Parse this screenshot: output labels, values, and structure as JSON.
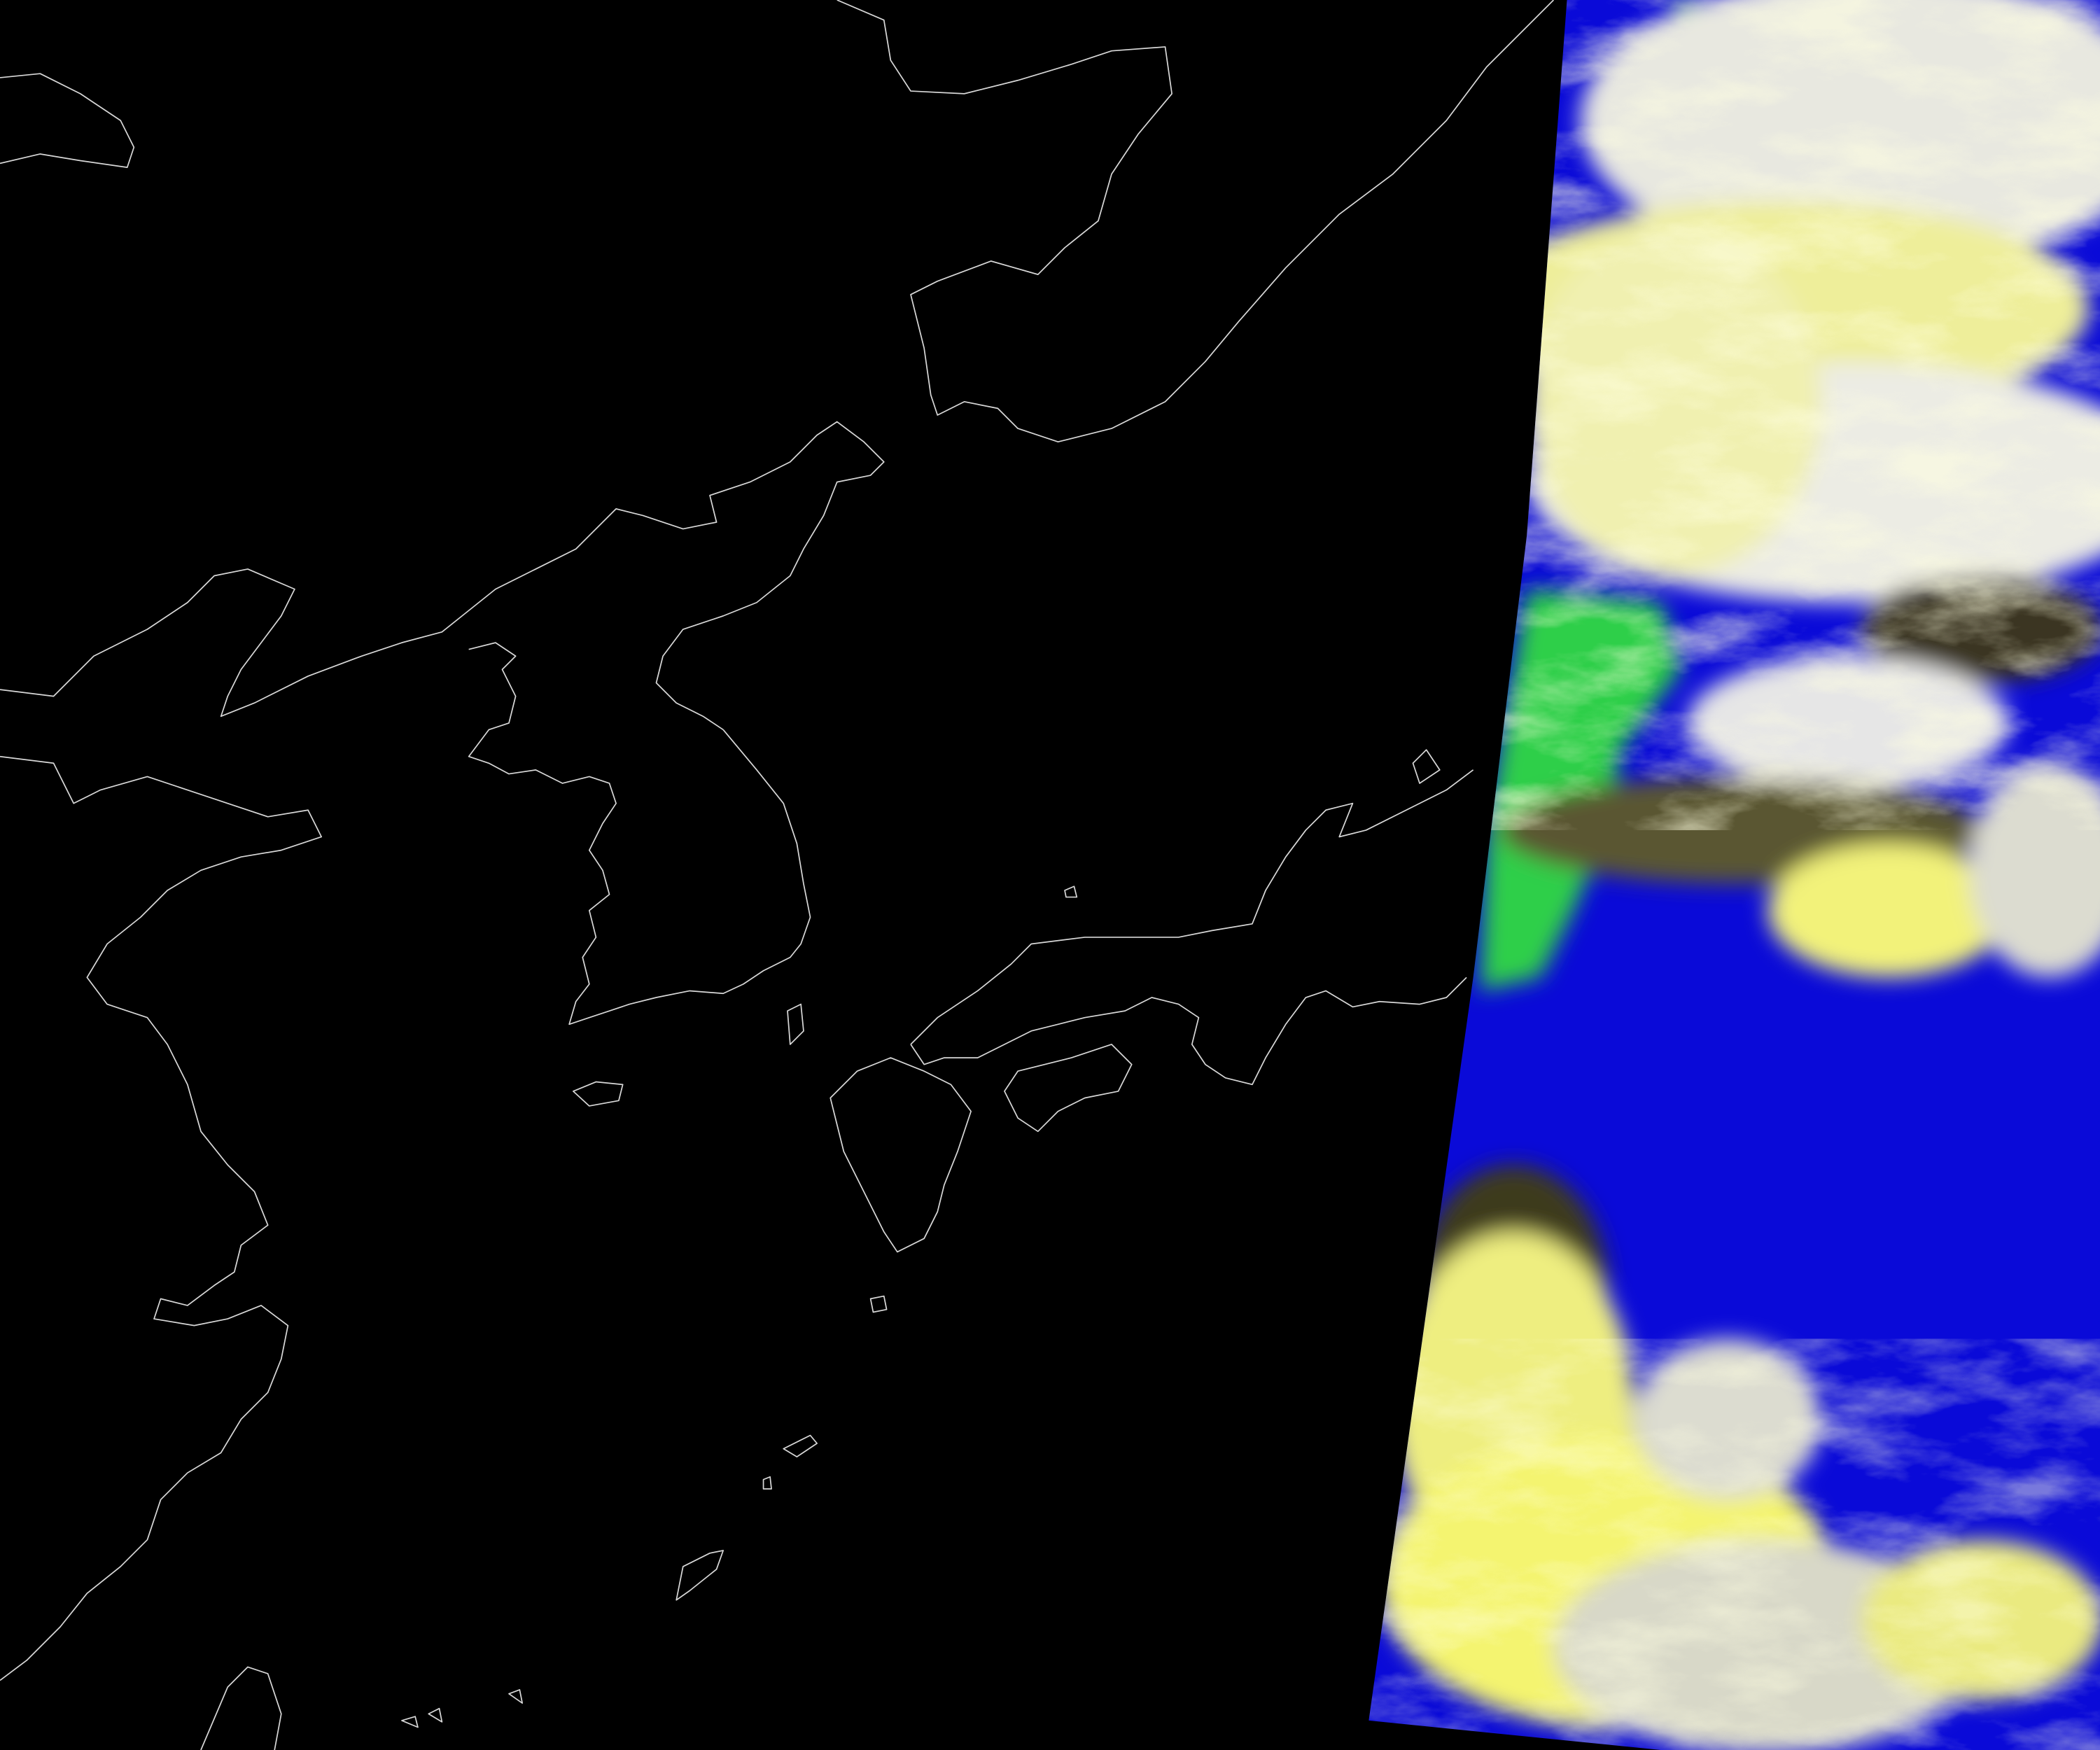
{
  "map": {
    "type": "satellite-composite",
    "layers": [
      "coastline-outlines",
      "satellite-swath"
    ],
    "colors": {
      "background": "#000000",
      "coastline": "#d8d8d8",
      "ocean": "#0a0ad8",
      "land": "#2fcf4a",
      "cloud_high": "#f4f48a",
      "cloud_low": "#e8e8ee",
      "cloud_shadow": "#4a4620"
    }
  }
}
